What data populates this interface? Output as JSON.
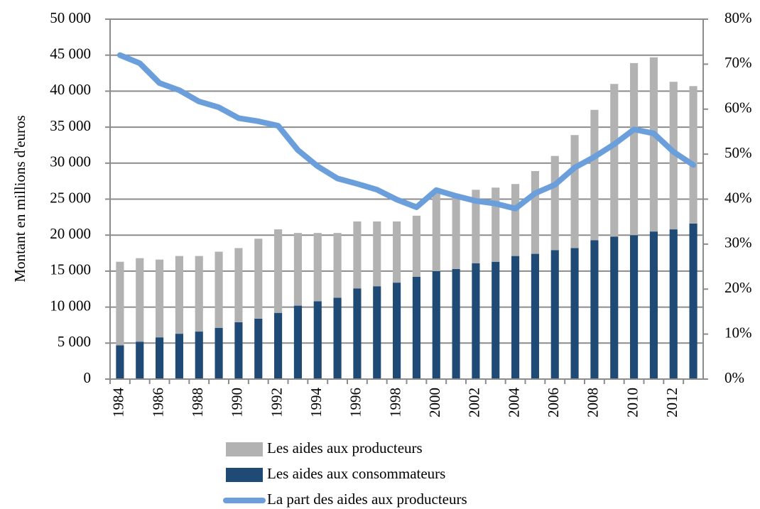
{
  "chart_data": {
    "type": "bar",
    "stacked": true,
    "ylabel": "Montant en millions d'euros",
    "categories": [
      "1984",
      null,
      "1986",
      null,
      "1988",
      null,
      "1990",
      null,
      "1992",
      null,
      "1994",
      null,
      "1996",
      null,
      "1998",
      null,
      "2000",
      null,
      "2002",
      null,
      "2004",
      null,
      "2006",
      null,
      "2008",
      null,
      "2010",
      null,
      "2012",
      null
    ],
    "series": [
      {
        "name": "Les aides aux producteurs",
        "color": "#b2b2b2",
        "stack_order": 1,
        "values": [
          11600,
          11600,
          10800,
          10800,
          10500,
          10600,
          10300,
          11100,
          11600,
          10100,
          9500,
          9000,
          9300,
          9000,
          8500,
          8500,
          10800,
          10200,
          10200,
          10300,
          10000,
          11500,
          13100,
          15700,
          18100,
          21200,
          23900,
          24200,
          20500,
          19100
        ]
      },
      {
        "name": "Les aides aux consommateurs",
        "color": "#1f4a76",
        "stack_order": 0,
        "values": [
          4700,
          5200,
          5800,
          6300,
          6600,
          7100,
          7900,
          8400,
          9200,
          10200,
          10800,
          11300,
          12600,
          12900,
          13400,
          14200,
          15000,
          15300,
          16100,
          16300,
          17100,
          17400,
          17900,
          18200,
          19300,
          19800,
          20000,
          20500,
          20800,
          21600
        ]
      },
      {
        "name": "La part des aides aux producteurs",
        "color": "#6a9fdc",
        "type": "line",
        "axis": "y2",
        "values": [
          72,
          70.2,
          65.8,
          64.2,
          61.7,
          60.4,
          58,
          57.3,
          56.3,
          50.9,
          47.3,
          44.6,
          43.4,
          42.1,
          39.9,
          38.2,
          42,
          40.7,
          39.6,
          39,
          37.9,
          41.3,
          43.2,
          47,
          49.4,
          52.2,
          55.5,
          54.6,
          50.5,
          47.6
        ]
      }
    ],
    "ylim": [
      0,
      50000
    ],
    "yticks": [
      {
        "value": 0,
        "label": "0"
      },
      {
        "value": 5000,
        "label": "5 000"
      },
      {
        "value": 10000,
        "label": "10 000"
      },
      {
        "value": 15000,
        "label": "15 000"
      },
      {
        "value": 20000,
        "label": "20 000"
      },
      {
        "value": 25000,
        "label": "25 000"
      },
      {
        "value": 30000,
        "label": "30 000"
      },
      {
        "value": 35000,
        "label": "35 000"
      },
      {
        "value": 40000,
        "label": "40 000"
      },
      {
        "value": 45000,
        "label": "45 000"
      },
      {
        "value": 50000,
        "label": "50 000"
      }
    ],
    "y2lim": [
      0,
      80
    ],
    "y2ticks": [
      {
        "value": 0,
        "label": "0%"
      },
      {
        "value": 10,
        "label": "10%"
      },
      {
        "value": 20,
        "label": "20%"
      },
      {
        "value": 30,
        "label": "30%"
      },
      {
        "value": 40,
        "label": "40%"
      },
      {
        "value": 50,
        "label": "50%"
      },
      {
        "value": 60,
        "label": "60%"
      },
      {
        "value": 70,
        "label": "70%"
      },
      {
        "value": 80,
        "label": "80%"
      }
    ],
    "grid": true,
    "legend": "bottom"
  }
}
